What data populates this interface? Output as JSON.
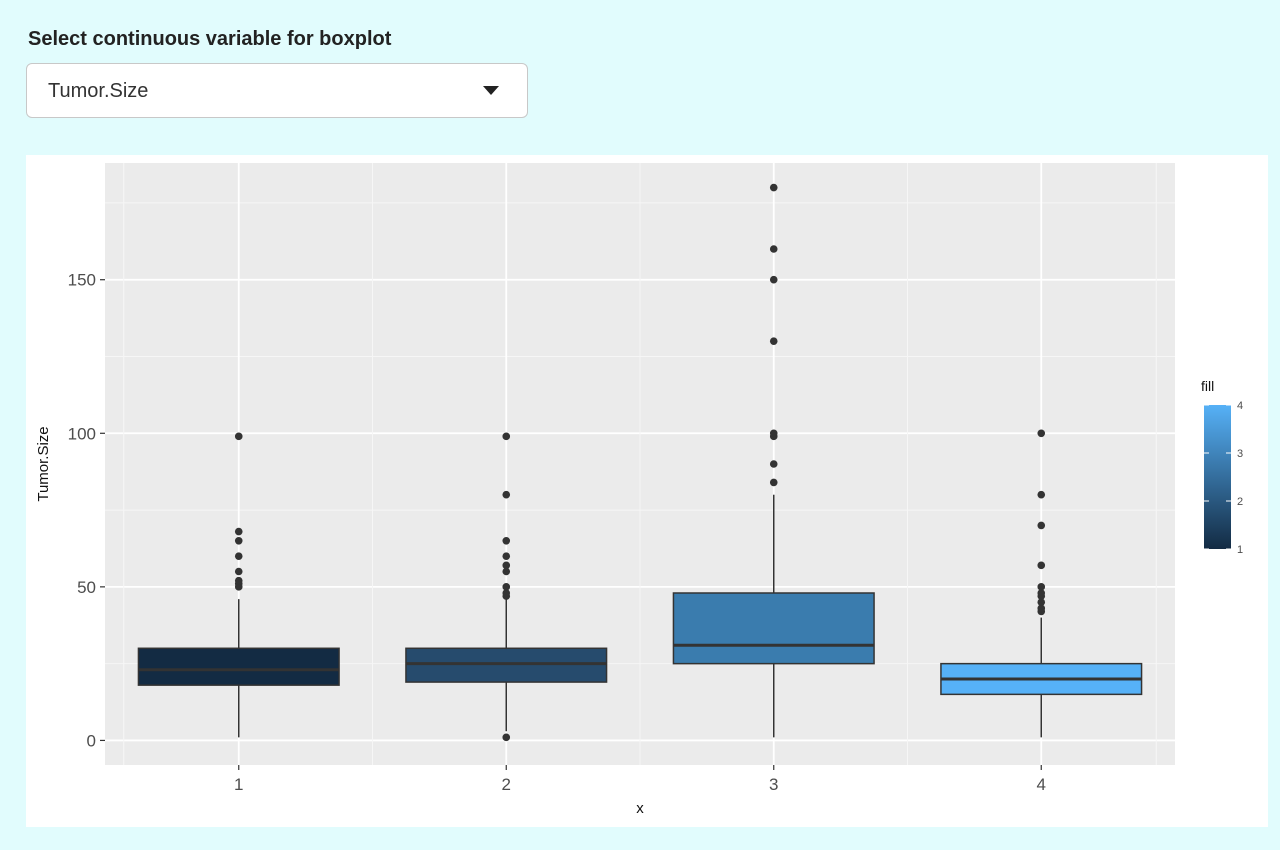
{
  "control": {
    "label": "Select continuous variable for boxplot",
    "selected": "Tumor.Size"
  },
  "chart_data": {
    "type": "boxplot",
    "xlabel": "x",
    "ylabel": "Tumor.Size",
    "ylim": [
      -8,
      188
    ],
    "yticks": [
      0,
      50,
      100,
      150
    ],
    "xticks": [
      "1",
      "2",
      "3",
      "4"
    ],
    "legend": {
      "title": "fill",
      "position": "right",
      "ticks": [
        "1",
        "2",
        "3",
        "4"
      ],
      "color_low": "#132b43",
      "color_high": "#56b1f7"
    },
    "grid": true,
    "panel_background": "#ebebeb",
    "boxes": [
      {
        "x": "1",
        "fill": "#132b43",
        "lower_whisker": 1,
        "q1": 18,
        "median": 23,
        "q3": 30,
        "upper_whisker": 46,
        "outliers": [
          50,
          51,
          52,
          55,
          60,
          65,
          68,
          99
        ]
      },
      {
        "x": "2",
        "fill": "#264b6d",
        "lower_whisker": 3,
        "q1": 19,
        "median": 25,
        "q3": 30,
        "upper_whisker": 46,
        "outliers": [
          1,
          47,
          48,
          50,
          55,
          57,
          60,
          65,
          80,
          99
        ]
      },
      {
        "x": "3",
        "fill": "#3a7cae",
        "lower_whisker": 1,
        "q1": 25,
        "median": 31,
        "q3": 48,
        "upper_whisker": 80,
        "outliers": [
          84,
          90,
          99,
          100,
          130,
          150,
          160,
          180
        ]
      },
      {
        "x": "4",
        "fill": "#56b1f7",
        "lower_whisker": 1,
        "q1": 15,
        "median": 20,
        "q3": 25,
        "upper_whisker": 40,
        "outliers": [
          42,
          43,
          45,
          47,
          48,
          50,
          57,
          70,
          80,
          100
        ]
      }
    ]
  }
}
